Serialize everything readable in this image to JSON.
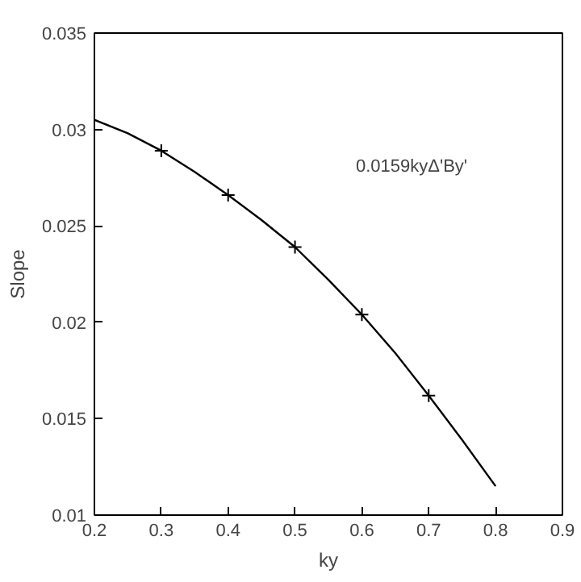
{
  "chart_data": {
    "type": "line",
    "xlabel": "ky",
    "ylabel": "Slope",
    "xlim": [
      0.2,
      0.9
    ],
    "ylim": [
      0.01,
      0.035
    ],
    "xticks": [
      0.2,
      0.3,
      0.4,
      0.5,
      0.6,
      0.7,
      0.8,
      0.9
    ],
    "yticks": [
      0.01,
      0.015,
      0.02,
      0.025,
      0.03,
      0.035
    ],
    "annotations": [
      "0.0159kyΔ'By'"
    ],
    "series": [
      {
        "color": "#000000",
        "marker": "none",
        "line_style": "solid",
        "x": [
          0.2,
          0.25,
          0.3,
          0.35,
          0.4,
          0.45,
          0.5,
          0.55,
          0.6,
          0.65,
          0.7,
          0.75,
          0.8
        ],
        "values": [
          0.0305,
          0.0298,
          0.0289,
          0.0278,
          0.0266,
          0.0253,
          0.0239,
          0.0222,
          0.0204,
          0.0184,
          0.0162,
          0.0139,
          0.0115
        ]
      },
      {
        "type": "scatter",
        "color": "#000000",
        "marker": "cross",
        "x": [
          0.3,
          0.4,
          0.5,
          0.6,
          0.7
        ],
        "values": [
          0.0289,
          0.0266,
          0.0239,
          0.0204,
          0.0162
        ]
      }
    ]
  }
}
